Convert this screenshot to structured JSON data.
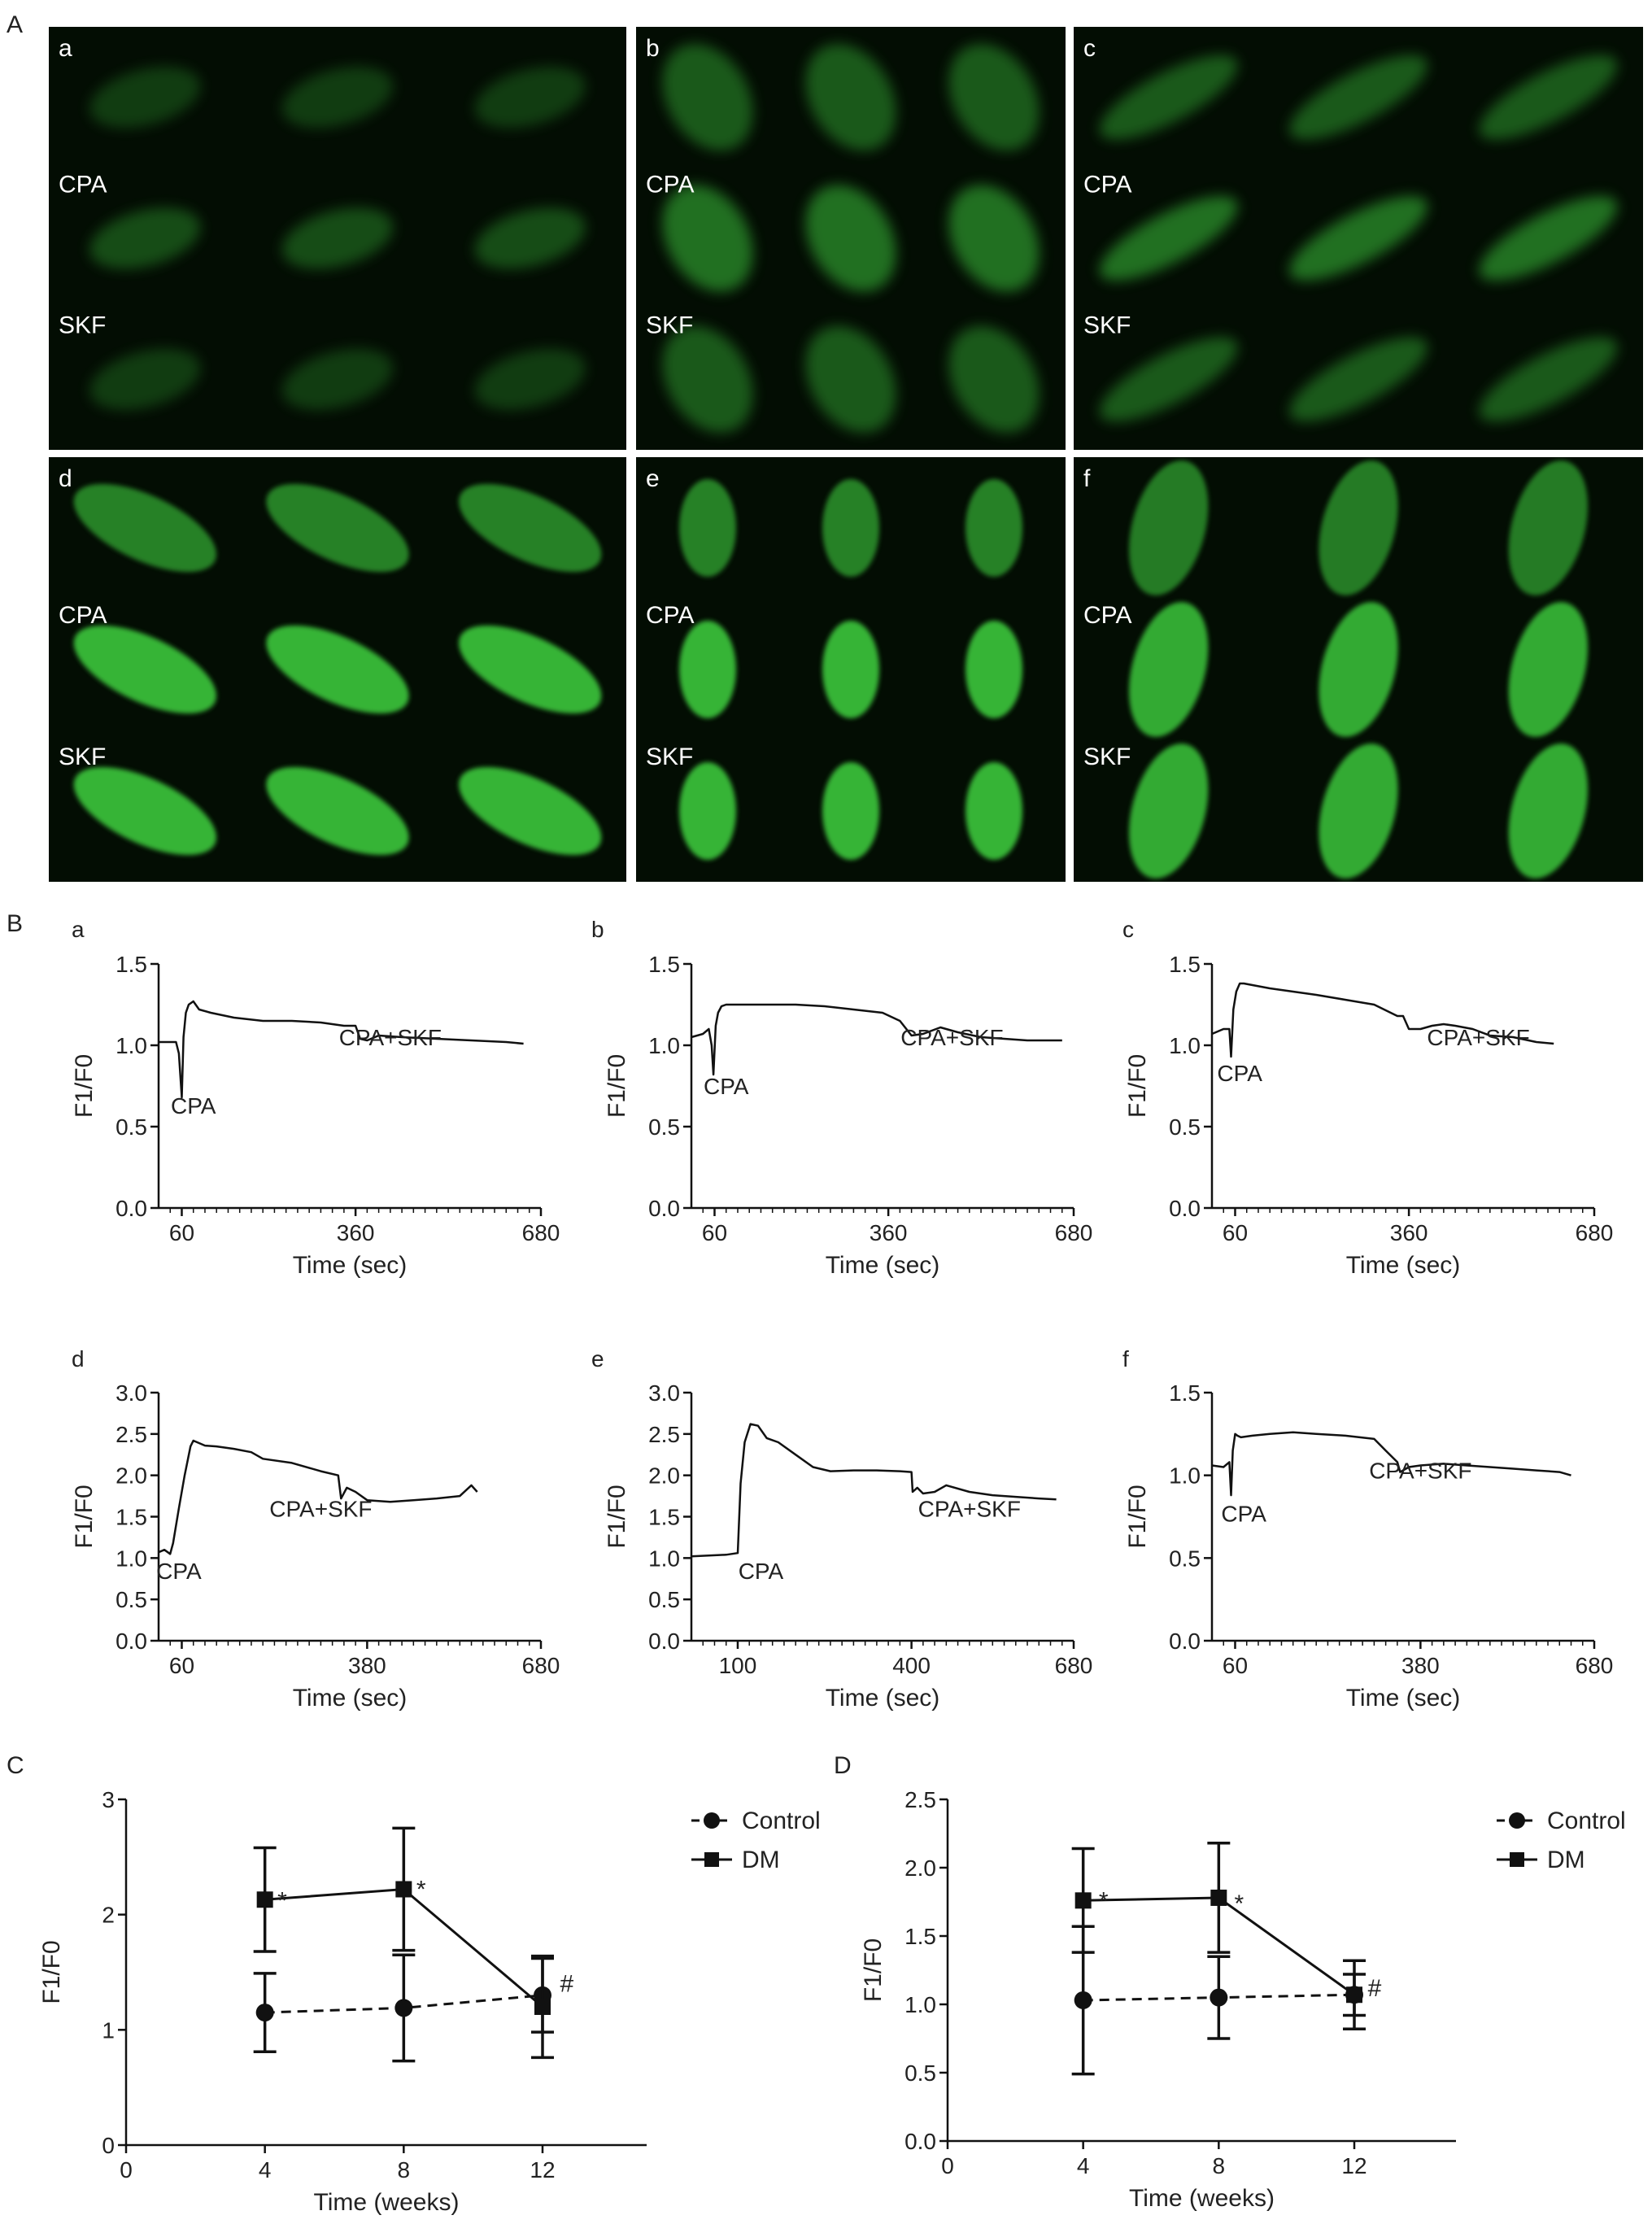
{
  "figure": {
    "panel_letters": [
      "A",
      "B",
      "C",
      "D"
    ],
    "colors": {
      "micrograph_bg": "#030d03",
      "cell": "#3fd23f",
      "ink": "#111111"
    }
  },
  "micrographs": [
    {
      "letter": "a",
      "labels": [
        "CPA",
        "SKF"
      ]
    },
    {
      "letter": "b",
      "labels": [
        "CPA",
        "SKF"
      ]
    },
    {
      "letter": "c",
      "labels": [
        "CPA",
        "SKF"
      ]
    },
    {
      "letter": "d",
      "labels": [
        "CPA",
        "SKF"
      ]
    },
    {
      "letter": "e",
      "labels": [
        "CPA",
        "SKF"
      ]
    },
    {
      "letter": "f",
      "labels": [
        "CPA",
        "SKF"
      ]
    }
  ],
  "chart_data": [
    {
      "type": "line",
      "panel": "B-a",
      "xlabel": "Time (sec)",
      "ylabel": "F1/F0",
      "xlim": [
        20,
        680
      ],
      "ylim": [
        0,
        1.5
      ],
      "xticks": [
        60,
        360,
        680
      ],
      "yticks": [
        0.0,
        0.5,
        1.0,
        1.5
      ],
      "annotations": [
        {
          "text": "CPA",
          "x": 80,
          "y": 0.58
        },
        {
          "text": "CPA+SKF",
          "x": 420,
          "y": 1.0
        }
      ],
      "series": [
        {
          "x": [
            20,
            50,
            55,
            60,
            63,
            67,
            72,
            80,
            90,
            110,
            150,
            200,
            250,
            300,
            340,
            360,
            368,
            380,
            400,
            440,
            500,
            560,
            620,
            650
          ],
          "y": [
            1.02,
            1.02,
            0.95,
            0.68,
            1.05,
            1.2,
            1.25,
            1.27,
            1.22,
            1.2,
            1.17,
            1.15,
            1.15,
            1.14,
            1.12,
            1.12,
            1.04,
            1.03,
            1.06,
            1.05,
            1.04,
            1.03,
            1.02,
            1.01
          ]
        }
      ]
    },
    {
      "type": "line",
      "panel": "B-b",
      "xlabel": "Time (sec)",
      "ylabel": "F1/F0",
      "xlim": [
        20,
        680
      ],
      "ylim": [
        0,
        1.5
      ],
      "xticks": [
        60,
        360,
        680
      ],
      "yticks": [
        0.0,
        0.5,
        1.0,
        1.5
      ],
      "annotations": [
        {
          "text": "CPA",
          "x": 80,
          "y": 0.7
        },
        {
          "text": "CPA+SKF",
          "x": 470,
          "y": 1.0
        }
      ],
      "series": [
        {
          "x": [
            20,
            40,
            50,
            55,
            58,
            62,
            66,
            72,
            80,
            100,
            150,
            200,
            250,
            300,
            350,
            380,
            400,
            420,
            450,
            480,
            520,
            560,
            600,
            640,
            660
          ],
          "y": [
            1.05,
            1.07,
            1.1,
            1.0,
            0.82,
            1.12,
            1.2,
            1.24,
            1.25,
            1.25,
            1.25,
            1.25,
            1.24,
            1.22,
            1.2,
            1.15,
            1.06,
            1.07,
            1.11,
            1.08,
            1.05,
            1.04,
            1.03,
            1.03,
            1.03
          ]
        }
      ]
    },
    {
      "type": "line",
      "panel": "B-c",
      "xlabel": "Time (sec)",
      "ylabel": "F1/F0",
      "xlim": [
        20,
        680
      ],
      "ylim": [
        0,
        1.5
      ],
      "xticks": [
        60,
        360,
        680
      ],
      "yticks": [
        0.0,
        0.5,
        1.0,
        1.5
      ],
      "annotations": [
        {
          "text": "CPA",
          "x": 68,
          "y": 0.78
        },
        {
          "text": "CPA+SKF",
          "x": 480,
          "y": 1.0
        }
      ],
      "series": [
        {
          "x": [
            20,
            40,
            50,
            53,
            57,
            62,
            68,
            75,
            90,
            120,
            160,
            200,
            250,
            300,
            340,
            350,
            360,
            380,
            400,
            420,
            440,
            470,
            500,
            540,
            580,
            610
          ],
          "y": [
            1.07,
            1.1,
            1.1,
            0.93,
            1.22,
            1.33,
            1.38,
            1.38,
            1.37,
            1.35,
            1.33,
            1.31,
            1.28,
            1.25,
            1.18,
            1.18,
            1.1,
            1.1,
            1.12,
            1.13,
            1.12,
            1.1,
            1.06,
            1.05,
            1.02,
            1.01
          ]
        }
      ]
    },
    {
      "type": "line",
      "panel": "B-d",
      "xlabel": "Time (sec)",
      "ylabel": "F1/F0",
      "xlim": [
        20,
        680
      ],
      "ylim": [
        0,
        3.0
      ],
      "xticks": [
        60,
        380,
        680
      ],
      "yticks": [
        0.0,
        0.5,
        1.0,
        1.5,
        2.0,
        2.5,
        3.0
      ],
      "annotations": [
        {
          "text": "CPA",
          "x": 55,
          "y": 0.75
        },
        {
          "text": "CPA+SKF",
          "x": 300,
          "y": 1.5
        }
      ],
      "series": [
        {
          "x": [
            20,
            30,
            40,
            45,
            55,
            65,
            75,
            80,
            100,
            120,
            150,
            180,
            200,
            250,
            300,
            330,
            335,
            345,
            360,
            380,
            420,
            460,
            500,
            540,
            560,
            570
          ],
          "y": [
            1.07,
            1.1,
            1.05,
            1.18,
            1.6,
            2.0,
            2.35,
            2.42,
            2.36,
            2.35,
            2.32,
            2.28,
            2.2,
            2.15,
            2.05,
            2.0,
            1.72,
            1.85,
            1.8,
            1.7,
            1.68,
            1.7,
            1.72,
            1.75,
            1.88,
            1.8
          ]
        }
      ]
    },
    {
      "type": "line",
      "panel": "B-e",
      "xlabel": "Time (sec)",
      "ylabel": "F1/F0",
      "xlim": [
        20,
        680
      ],
      "ylim": [
        0,
        3.0
      ],
      "xticks": [
        100,
        400,
        680
      ],
      "yticks": [
        0.0,
        0.5,
        1.0,
        1.5,
        2.0,
        2.5,
        3.0
      ],
      "annotations": [
        {
          "text": "CPA",
          "x": 140,
          "y": 0.75
        },
        {
          "text": "CPA+SKF",
          "x": 500,
          "y": 1.5
        }
      ],
      "series": [
        {
          "x": [
            20,
            50,
            80,
            100,
            105,
            112,
            122,
            135,
            150,
            170,
            200,
            230,
            260,
            300,
            340,
            380,
            400,
            402,
            410,
            420,
            440,
            460,
            500,
            540,
            580,
            620,
            650
          ],
          "y": [
            1.02,
            1.03,
            1.04,
            1.06,
            1.9,
            2.4,
            2.62,
            2.6,
            2.45,
            2.4,
            2.25,
            2.1,
            2.05,
            2.06,
            2.06,
            2.05,
            2.04,
            1.8,
            1.85,
            1.78,
            1.8,
            1.88,
            1.8,
            1.76,
            1.74,
            1.72,
            1.71
          ]
        }
      ]
    },
    {
      "type": "line",
      "panel": "B-f",
      "xlabel": "Time (sec)",
      "ylabel": "F1/F0",
      "xlim": [
        20,
        680
      ],
      "ylim": [
        0,
        1.5
      ],
      "xticks": [
        60,
        380,
        680
      ],
      "yticks": [
        0.0,
        0.5,
        1.0,
        1.5
      ],
      "annotations": [
        {
          "text": "CPA",
          "x": 75,
          "y": 0.72
        },
        {
          "text": "CPA+SKF",
          "x": 380,
          "y": 0.98
        }
      ],
      "series": [
        {
          "x": [
            20,
            40,
            50,
            53,
            56,
            60,
            64,
            70,
            90,
            120,
            160,
            200,
            250,
            300,
            320,
            340,
            345,
            360,
            380,
            420,
            460,
            500,
            540,
            580,
            620,
            640
          ],
          "y": [
            1.06,
            1.05,
            1.08,
            0.88,
            1.15,
            1.25,
            1.24,
            1.23,
            1.24,
            1.25,
            1.26,
            1.25,
            1.24,
            1.22,
            1.15,
            1.08,
            1.02,
            1.05,
            1.06,
            1.07,
            1.06,
            1.05,
            1.04,
            1.03,
            1.02,
            1.0
          ]
        }
      ]
    },
    {
      "type": "line",
      "panel": "C",
      "xlabel": "Time (weeks)",
      "ylabel": "F1/F0",
      "xlim": [
        0,
        15
      ],
      "ylim": [
        0,
        3
      ],
      "xticks": [
        0,
        4,
        8,
        12
      ],
      "yticks": [
        0,
        1,
        2,
        3
      ],
      "legend_position": "top-right",
      "annotations": [
        {
          "text": "*",
          "x": 4.5,
          "y": 2.05
        },
        {
          "text": "*",
          "x": 8.5,
          "y": 2.15
        },
        {
          "text": "#",
          "x": 12.7,
          "y": 1.33
        }
      ],
      "series": [
        {
          "name": "Control",
          "style": "dashed",
          "marker": "circle",
          "x": [
            4,
            8,
            12
          ],
          "y": [
            1.15,
            1.19,
            1.3
          ],
          "err": [
            0.34,
            0.46,
            0.32
          ]
        },
        {
          "name": "DM",
          "style": "solid",
          "marker": "square",
          "x": [
            4,
            8,
            12
          ],
          "y": [
            2.13,
            2.22,
            1.2
          ],
          "err": [
            0.45,
            0.53,
            0.44
          ]
        }
      ]
    },
    {
      "type": "line",
      "panel": "D",
      "xlabel": "Time (weeks)",
      "ylabel": "F1/F0",
      "xlim": [
        0,
        15
      ],
      "ylim": [
        0,
        2.5
      ],
      "xticks": [
        0,
        4,
        8,
        12
      ],
      "yticks": [
        0.0,
        0.5,
        1.0,
        1.5,
        2.0,
        2.5
      ],
      "legend_position": "top-right",
      "annotations": [
        {
          "text": "*",
          "x": 4.6,
          "y": 1.7
        },
        {
          "text": "*",
          "x": 8.6,
          "y": 1.68
        },
        {
          "text": "#",
          "x": 12.6,
          "y": 1.06
        }
      ],
      "series": [
        {
          "name": "Control",
          "style": "dashed",
          "marker": "circle",
          "x": [
            4,
            8,
            12
          ],
          "y": [
            1.03,
            1.05,
            1.07
          ],
          "err": [
            0.54,
            0.3,
            0.25
          ]
        },
        {
          "name": "DM",
          "style": "solid",
          "marker": "square",
          "x": [
            4,
            8,
            12
          ],
          "y": [
            1.76,
            1.78,
            1.07
          ],
          "err": [
            0.38,
            0.4,
            0.15
          ]
        }
      ]
    }
  ]
}
